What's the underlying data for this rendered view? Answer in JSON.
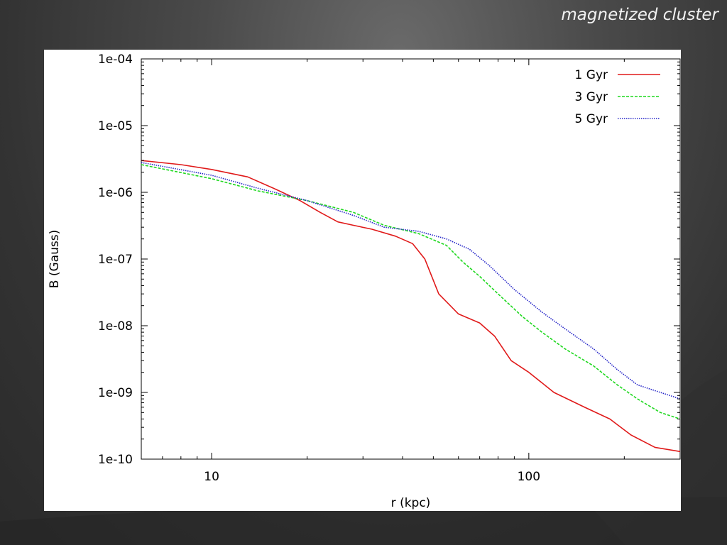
{
  "slide": {
    "title": "magnetized cluster"
  },
  "colors": {
    "series_1": "#e01a1a",
    "series_2": "#1fd81f",
    "series_3": "#2626c8",
    "background": "#3a3a3a"
  },
  "chart_data": {
    "type": "line",
    "title": "",
    "xlabel": "r (kpc)",
    "ylabel": "B (Gauss)",
    "xscale": "log",
    "yscale": "log",
    "xlim": [
      6,
      300
    ],
    "ylim": [
      1e-10,
      0.0001
    ],
    "x_tick_labels": [
      {
        "value": 10,
        "label": "10"
      },
      {
        "value": 100,
        "label": "100"
      }
    ],
    "y_tick_labels": [
      {
        "value": 0.0001,
        "label": "1e-04"
      },
      {
        "value": 1e-05,
        "label": "1e-05"
      },
      {
        "value": 1e-06,
        "label": "1e-06"
      },
      {
        "value": 1e-07,
        "label": "1e-07"
      },
      {
        "value": 1e-08,
        "label": "1e-08"
      },
      {
        "value": 1e-09,
        "label": "1e-09"
      },
      {
        "value": 1e-10,
        "label": "1e-10"
      }
    ],
    "grid": false,
    "legend_position": "top-right",
    "series": [
      {
        "name": "1 Gyr",
        "style": "solid",
        "points": [
          [
            6,
            3e-06
          ],
          [
            8,
            2.6e-06
          ],
          [
            10,
            2.2e-06
          ],
          [
            13,
            1.7e-06
          ],
          [
            16,
            1.1e-06
          ],
          [
            19,
            7.5e-07
          ],
          [
            22,
            5e-07
          ],
          [
            25,
            3.6e-07
          ],
          [
            28,
            3.2e-07
          ],
          [
            32,
            2.8e-07
          ],
          [
            38,
            2.2e-07
          ],
          [
            43,
            1.7e-07
          ],
          [
            47,
            1e-07
          ],
          [
            52,
            3e-08
          ],
          [
            60,
            1.5e-08
          ],
          [
            70,
            1.1e-08
          ],
          [
            78,
            7e-09
          ],
          [
            88,
            3e-09
          ],
          [
            100,
            2e-09
          ],
          [
            120,
            1e-09
          ],
          [
            150,
            6e-10
          ],
          [
            180,
            4e-10
          ],
          [
            210,
            2.3e-10
          ],
          [
            250,
            1.5e-10
          ],
          [
            300,
            1.3e-10
          ]
        ]
      },
      {
        "name": "3 Gyr",
        "style": "dashed",
        "points": [
          [
            6,
            2.6e-06
          ],
          [
            10,
            1.6e-06
          ],
          [
            14,
            1.05e-06
          ],
          [
            20,
            7.5e-07
          ],
          [
            28,
            5e-07
          ],
          [
            35,
            3.2e-07
          ],
          [
            45,
            2.4e-07
          ],
          [
            55,
            1.6e-07
          ],
          [
            62,
            9e-08
          ],
          [
            70,
            5.5e-08
          ],
          [
            80,
            3e-08
          ],
          [
            95,
            1.4e-08
          ],
          [
            110,
            8e-09
          ],
          [
            130,
            4.5e-09
          ],
          [
            160,
            2.5e-09
          ],
          [
            190,
            1.3e-09
          ],
          [
            220,
            8e-10
          ],
          [
            260,
            5e-10
          ],
          [
            300,
            4e-10
          ]
        ]
      },
      {
        "name": "5 Gyr",
        "style": "dotted",
        "points": [
          [
            6,
            2.8e-06
          ],
          [
            10,
            1.8e-06
          ],
          [
            14,
            1.15e-06
          ],
          [
            20,
            7.5e-07
          ],
          [
            28,
            4.5e-07
          ],
          [
            35,
            3e-07
          ],
          [
            45,
            2.6e-07
          ],
          [
            55,
            2e-07
          ],
          [
            65,
            1.4e-07
          ],
          [
            75,
            8e-08
          ],
          [
            90,
            3.5e-08
          ],
          [
            110,
            1.6e-08
          ],
          [
            130,
            9e-09
          ],
          [
            160,
            4.5e-09
          ],
          [
            190,
            2.2e-09
          ],
          [
            220,
            1.3e-09
          ],
          [
            260,
            1e-09
          ],
          [
            300,
            8e-10
          ]
        ]
      }
    ]
  }
}
